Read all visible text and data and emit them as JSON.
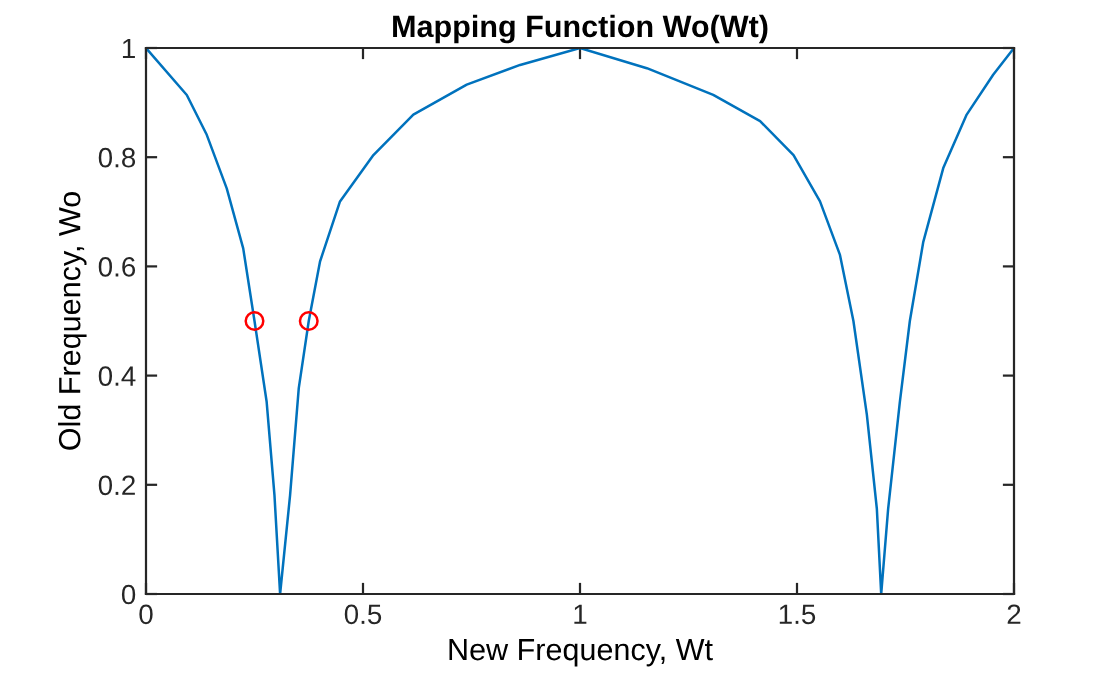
{
  "chart_data": {
    "type": "line",
    "title": "Mapping Function Wo(Wt)",
    "xlabel": "New Frequency, Wt",
    "ylabel": "Old Frequency, Wo",
    "series": [
      {
        "color": "#0072bd",
        "marker": "none",
        "x": [
          0,
          0.094,
          0.14,
          0.186,
          0.224,
          0.25,
          0.278,
          0.296,
          0.309,
          0.332,
          0.352,
          0.375,
          0.401,
          0.447,
          0.524,
          0.616,
          0.739,
          0.862,
          1.0,
          1.154,
          1.307,
          1.415,
          1.492,
          1.553,
          1.599,
          1.63,
          1.661,
          1.684,
          1.694,
          1.71,
          1.737,
          1.76,
          1.791,
          1.837,
          1.891,
          1.952,
          2.0
        ],
        "values": [
          1,
          0.914,
          0.841,
          0.743,
          0.633,
          0.5,
          0.352,
          0.181,
          0,
          0.181,
          0.377,
          0.5,
          0.609,
          0.719,
          0.804,
          0.878,
          0.933,
          0.969,
          1.0,
          0.963,
          0.914,
          0.866,
          0.804,
          0.719,
          0.621,
          0.5,
          0.328,
          0.156,
          0,
          0.156,
          0.352,
          0.5,
          0.645,
          0.78,
          0.878,
          0.951,
          1.0
        ]
      },
      {
        "type": "scatter",
        "color": "#ff0000",
        "marker": "circle",
        "x": [
          0.25,
          0.375
        ],
        "values": [
          0.5,
          0.5
        ]
      }
    ],
    "xlim": [
      0,
      2
    ],
    "xticks": [
      0,
      0.5,
      1,
      1.5,
      2
    ],
    "ylim": [
      0,
      1
    ],
    "yticks": [
      0,
      0.2,
      0.4,
      0.6,
      0.8,
      1
    ],
    "grid": false,
    "legend": false
  }
}
